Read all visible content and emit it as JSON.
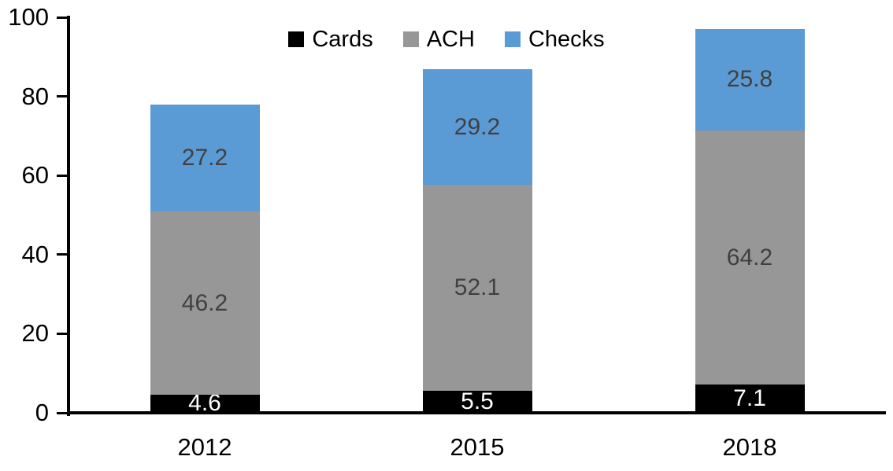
{
  "chart_data": {
    "type": "bar",
    "stacked": true,
    "title": "",
    "categories": [
      "2012",
      "2015",
      "2018"
    ],
    "series": [
      {
        "name": "Cards",
        "color": "#000000",
        "label_color": "#ffffff",
        "values": [
          4.6,
          5.5,
          7.1
        ]
      },
      {
        "name": "ACH",
        "color": "#979797",
        "label_color": "#404040",
        "values": [
          46.2,
          52.1,
          64.2
        ]
      },
      {
        "name": "Checks",
        "color": "#5B9BD5",
        "label_color": "#404040",
        "values": [
          27.2,
          29.2,
          25.8
        ]
      }
    ],
    "xlabel": "",
    "ylabel": "",
    "ylim": [
      0,
      100
    ],
    "yticks": [
      0,
      20,
      40,
      60,
      80,
      100
    ],
    "grid": false,
    "legend_position": "top-center",
    "axis_color": "#000000",
    "value_label_decimals": 1
  }
}
